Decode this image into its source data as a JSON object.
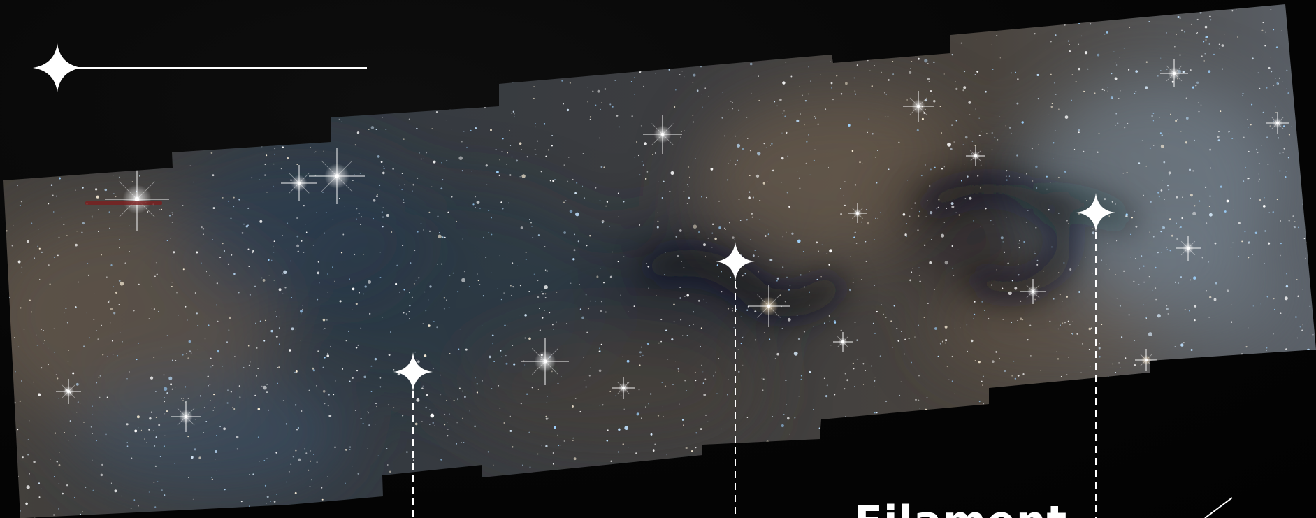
{
  "caption": {
    "text": "Filament"
  },
  "colors": {
    "background": "#050505",
    "marker": "#ffffff",
    "nebula_dust": "#7d6a55",
    "nebula_blue": "#5c7a92",
    "star_blue": "#9fd3ff",
    "star_warm": "#fff2d8"
  },
  "icons": {
    "title_marker": "four-point-sparkle-icon",
    "callout_marker": "four-point-sparkle-icon"
  }
}
